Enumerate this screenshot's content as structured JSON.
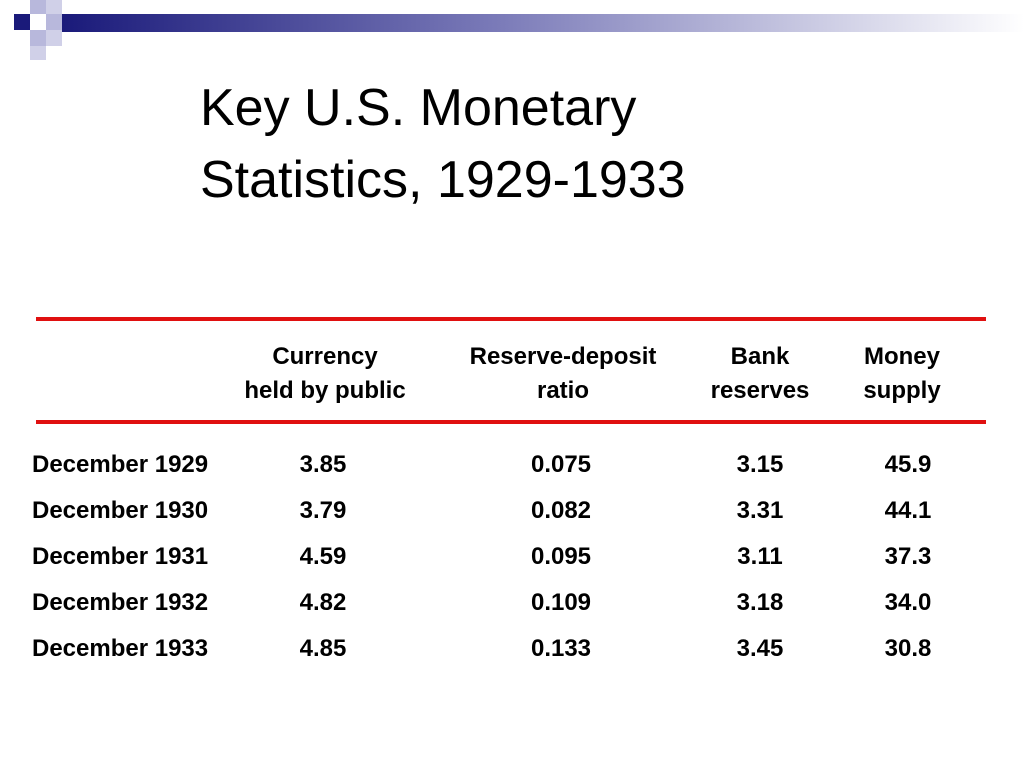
{
  "title": {
    "line1": "Key U.S. Monetary",
    "line2": "Statistics, 1929-1933"
  },
  "colors": {
    "rule": "#e01010",
    "deco_dark": "#1a1a7a",
    "deco_light": "#b8b8dc"
  },
  "table": {
    "columns": [
      {
        "line1": "Currency",
        "line2": "held by public"
      },
      {
        "line1": "Reserve-deposit",
        "line2": "ratio"
      },
      {
        "line1": "Bank",
        "line2": "reserves"
      },
      {
        "line1": "Money",
        "line2": "supply"
      }
    ],
    "rows": [
      {
        "label": "December 1929",
        "currency": "3.85",
        "ratio": "0.075",
        "reserves": "3.15",
        "money": "45.9"
      },
      {
        "label": "December 1930",
        "currency": "3.79",
        "ratio": "0.082",
        "reserves": "3.31",
        "money": "44.1"
      },
      {
        "label": "December 1931",
        "currency": "4.59",
        "ratio": "0.095",
        "reserves": "3.11",
        "money": "37.3"
      },
      {
        "label": "December 1932",
        "currency": "4.82",
        "ratio": "0.109",
        "reserves": "3.18",
        "money": "34.0"
      },
      {
        "label": "December 1933",
        "currency": "4.85",
        "ratio": "0.133",
        "reserves": "3.45",
        "money": "30.8"
      }
    ]
  }
}
